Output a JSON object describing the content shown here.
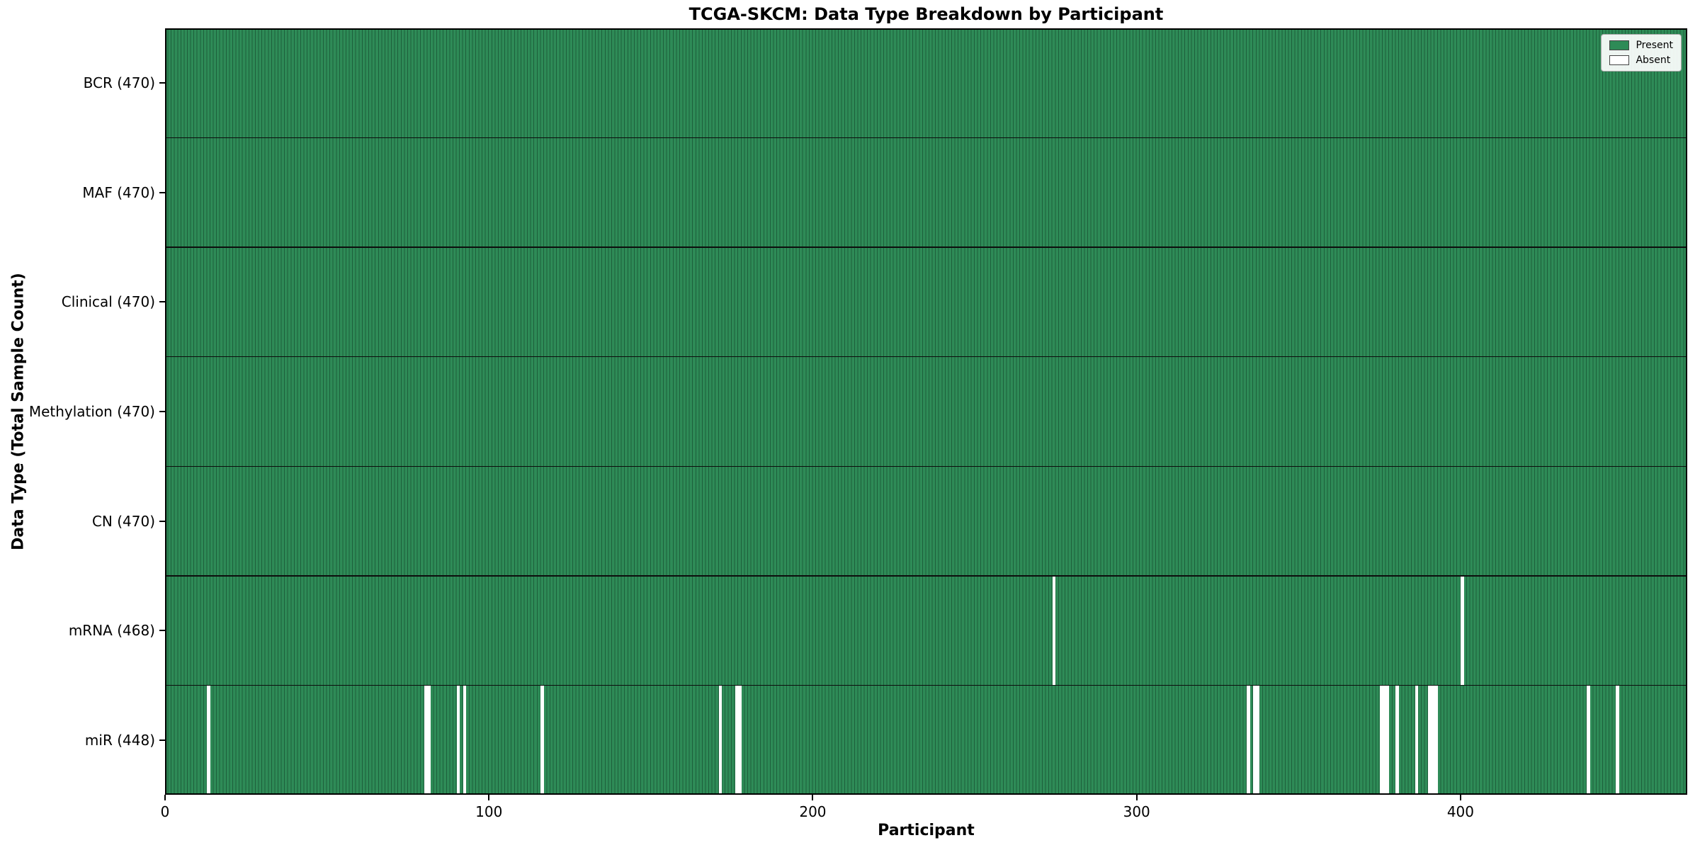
{
  "chart_data": {
    "type": "heatmap",
    "title": "TCGA-SKCM: Data Type Breakdown by Participant",
    "xlabel": "Participant",
    "ylabel": "Data Type (Total Sample Count)",
    "x_ticks": [
      0,
      100,
      200,
      300,
      400
    ],
    "xlim": [
      0,
      470
    ],
    "n_participants": 470,
    "grid": false,
    "legend_position": "upper right",
    "rows": [
      {
        "label": "BCR (470)",
        "data_type": "BCR",
        "total": 470,
        "absent_participants": []
      },
      {
        "label": "MAF (470)",
        "data_type": "MAF",
        "total": 470,
        "absent_participants": []
      },
      {
        "label": "Clinical (470)",
        "data_type": "Clinical",
        "total": 470,
        "absent_participants": []
      },
      {
        "label": "Methylation (470)",
        "data_type": "Methylation",
        "total": 470,
        "absent_participants": []
      },
      {
        "label": "CN (470)",
        "data_type": "CN",
        "total": 470,
        "absent_participants": []
      },
      {
        "label": "mRNA (468)",
        "data_type": "mRNA",
        "total": 468,
        "absent_participants": [
          274,
          400
        ]
      },
      {
        "label": "miR (448)",
        "data_type": "miR",
        "total": 448,
        "absent_participants": [
          13,
          80,
          81,
          90,
          92,
          116,
          171,
          176,
          177,
          334,
          336,
          337,
          375,
          376,
          377,
          380,
          386,
          390,
          391,
          392,
          439,
          448
        ]
      }
    ],
    "legend": [
      {
        "label": "Present",
        "color": "#2e8b57"
      },
      {
        "label": "Absent",
        "color": "#ffffff"
      }
    ],
    "colors": {
      "present": "#2e8b57",
      "absent": "#ffffff",
      "cell_edge_line": "#1d5f3b",
      "row_separator": "#0d0d0d",
      "border": "#000000"
    }
  }
}
